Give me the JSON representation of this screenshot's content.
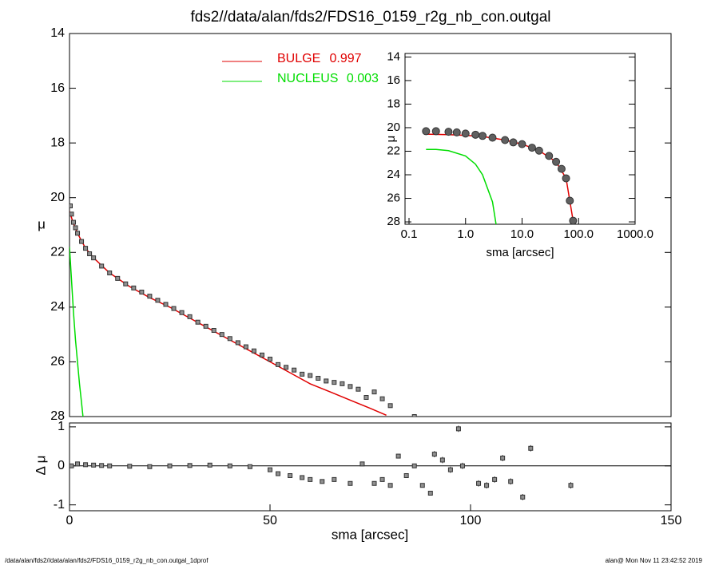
{
  "chart_data": [
    {
      "type": "profile",
      "title": "fds2//data/alan/fds2/FDS16_0159_r2g_nb_con.outgal",
      "ylabel": "μ",
      "xlim": [
        0,
        150
      ],
      "ylim": [
        28,
        14
      ],
      "yticks": [
        14,
        16,
        18,
        20,
        22,
        24,
        26,
        28
      ],
      "points": {
        "color": "#909090",
        "x": [
          0.2,
          0.5,
          1,
          1.5,
          2,
          3,
          4,
          5,
          6,
          8,
          10,
          12,
          14,
          16,
          18,
          20,
          22,
          24,
          26,
          28,
          30,
          32,
          34,
          36,
          38,
          40,
          42,
          44,
          46,
          48,
          50,
          52,
          54,
          56,
          58,
          60,
          62,
          64,
          66,
          68,
          70,
          72,
          74,
          76,
          78,
          80,
          86
        ],
        "values": [
          20.3,
          20.6,
          20.9,
          21.1,
          21.3,
          21.6,
          21.85,
          22.05,
          22.2,
          22.5,
          22.75,
          22.95,
          23.15,
          23.3,
          23.45,
          23.6,
          23.75,
          23.9,
          24.05,
          24.2,
          24.35,
          24.55,
          24.7,
          24.85,
          25.0,
          25.15,
          25.3,
          25.45,
          25.6,
          25.75,
          25.9,
          26.1,
          26.2,
          26.3,
          26.45,
          26.5,
          26.6,
          26.7,
          26.75,
          26.8,
          26.9,
          27.0,
          27.3,
          27.1,
          27.35,
          27.6,
          28.0
        ]
      },
      "series": [
        {
          "name": "BULGE",
          "fraction": 0.997,
          "color": "#e00000",
          "x": [
            0,
            1,
            2,
            4,
            6,
            10,
            15,
            20,
            25,
            30,
            35,
            40,
            45,
            50,
            55,
            60,
            65,
            70,
            75,
            79
          ],
          "values": [
            20.5,
            20.95,
            21.3,
            21.85,
            22.2,
            22.75,
            23.25,
            23.65,
            24.0,
            24.4,
            24.8,
            25.2,
            25.6,
            26.0,
            26.4,
            26.8,
            27.1,
            27.4,
            27.7,
            27.95
          ]
        },
        {
          "name": "NUCLEUS",
          "fraction": 0.003,
          "color": "#00dd00",
          "x": [
            0,
            0.5,
            1,
            1.5,
            2,
            2.5,
            3,
            3.5
          ],
          "values": [
            21.8,
            23.0,
            24.2,
            25.2,
            26.0,
            26.8,
            27.5,
            28.2
          ]
        }
      ]
    },
    {
      "type": "residual",
      "ylabel": "Δ μ",
      "xlabel": "sma [arcsec]",
      "xlim": [
        0,
        150
      ],
      "ylim": [
        -1.15,
        1.1
      ],
      "xticks": [
        0,
        50,
        100,
        150
      ],
      "yticks": [
        -1,
        0,
        1
      ],
      "color": "#909090",
      "x": [
        0.5,
        2,
        4,
        6,
        8,
        10,
        15,
        20,
        25,
        30,
        35,
        40,
        45,
        50,
        52,
        55,
        58,
        60,
        63,
        66,
        70,
        73,
        76,
        78,
        80,
        82,
        84,
        86,
        88,
        90,
        91,
        93,
        95,
        97,
        98,
        102,
        104,
        106,
        108,
        110,
        113,
        115,
        125
      ],
      "values": [
        0,
        0.05,
        0.03,
        0.02,
        0.01,
        0,
        -0.01,
        -0.02,
        0,
        0.01,
        0.02,
        0,
        -0.02,
        -0.1,
        -0.2,
        -0.25,
        -0.3,
        -0.35,
        -0.4,
        -0.35,
        -0.45,
        0.05,
        -0.45,
        -0.35,
        -0.5,
        0.25,
        -0.25,
        0,
        -0.5,
        -0.7,
        0.3,
        0.15,
        -0.1,
        0.95,
        0,
        -0.45,
        -0.5,
        -0.35,
        0.2,
        -0.4,
        -0.8,
        0.45,
        -0.5
      ],
      "errors": [
        0.01,
        0.01,
        0.01,
        0.01,
        0.01,
        0.01,
        0.01,
        0.01,
        0.01,
        0.01,
        0.01,
        0.01,
        0.01,
        0.01,
        0.01,
        0.01,
        0.01,
        0.01,
        0.01,
        0.01,
        0.03,
        0.03,
        0.03,
        0.03,
        0.03,
        0.03,
        0.03,
        0.03,
        0.03,
        0.03,
        0.08,
        0.08,
        0.08,
        0.08,
        0.08,
        0.08,
        0.08,
        0.08,
        0.08,
        0.08,
        0.08,
        0.08,
        0.08
      ]
    },
    {
      "type": "profile",
      "xlabel": "sma [arcsec]",
      "ylabel": "μ",
      "log_x": true,
      "xlim": [
        0.085,
        1000
      ],
      "ylim": [
        28.2,
        13.7
      ],
      "xticks": [
        {
          "value": 0.1,
          "label": "0.1"
        },
        {
          "value": 1,
          "label": "1.0"
        },
        {
          "value": 10,
          "label": "10.0"
        },
        {
          "value": 100,
          "label": "100.0"
        },
        {
          "value": 1000,
          "label": "1000.0"
        }
      ],
      "yticks": [
        14,
        16,
        18,
        20,
        22,
        24,
        26,
        28
      ],
      "points": {
        "color": "#606060",
        "x": [
          0.2,
          0.3,
          0.5,
          0.7,
          1,
          1.5,
          2,
          3,
          5,
          7,
          10,
          15,
          20,
          30,
          40,
          50,
          60,
          70,
          80
        ],
        "values": [
          20.3,
          20.3,
          20.35,
          20.4,
          20.5,
          20.6,
          20.7,
          20.85,
          21.05,
          21.25,
          21.4,
          21.7,
          21.95,
          22.4,
          22.9,
          23.5,
          24.3,
          26.2,
          27.9
        ]
      },
      "series": [
        {
          "color": "#e00000",
          "x": [
            0.2,
            0.5,
            1,
            2,
            5,
            10,
            20,
            40,
            60,
            80
          ],
          "values": [
            20.55,
            20.6,
            20.65,
            20.75,
            21.05,
            21.4,
            21.95,
            22.9,
            24.3,
            27.9
          ]
        },
        {
          "color": "#00dd00",
          "x": [
            0.2,
            0.3,
            0.5,
            1,
            1.5,
            2,
            3,
            3.5
          ],
          "values": [
            21.85,
            21.85,
            21.95,
            22.4,
            23.1,
            24.0,
            26.3,
            28.3
          ]
        }
      ]
    }
  ],
  "footer": {
    "left": "/data/alan/fds2//data/alan/fds2/FDS16_0159_r2g_nb_con.outgal_1dprof",
    "right": "alan@  Mon Nov 11 23:42:52 2019"
  }
}
